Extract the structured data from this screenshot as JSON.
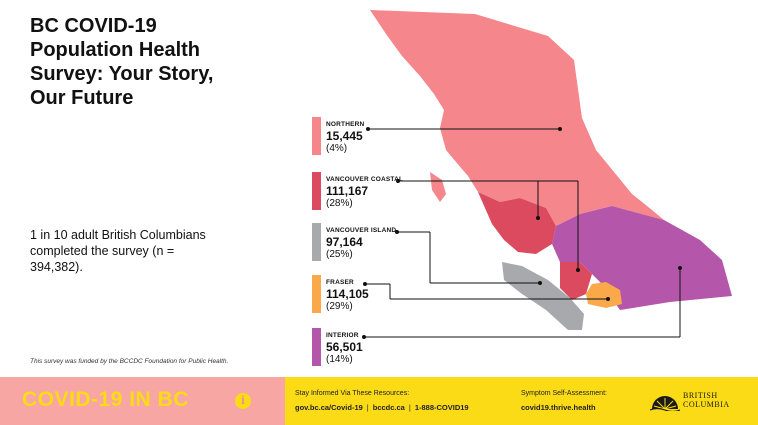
{
  "title": "BC COVID-19 Population Health Survey: Your Story, Our Future",
  "stat_text": "1 in 10 adult British Columbians completed the survey (n = 394,382).",
  "funding_note": "This survey was funded by the BCCDC Foundation for Public Health.",
  "regions": [
    {
      "name": "NORTHERN",
      "count": "15,445",
      "pct": "(4%)",
      "color": "#f4868c"
    },
    {
      "name": "VANCOUVER COASTAL",
      "count": "111,167",
      "pct": "(28%)",
      "color": "#db4a5e"
    },
    {
      "name": "VANCOUVER ISLAND",
      "count": "97,164",
      "pct": "(25%)",
      "color": "#a7a9ac"
    },
    {
      "name": "FRASER",
      "count": "114,105",
      "pct": "(29%)",
      "color": "#f9a94a"
    },
    {
      "name": "INTERIOR",
      "count": "56,501",
      "pct": "(14%)",
      "color": "#b457aa"
    }
  ],
  "footer": {
    "brand": "COVID-19 IN BC",
    "info_icon": "info-icon",
    "resources_title": "Stay Informed Via These Resources:",
    "resource_links": [
      "gov.bc.ca/Covid-19",
      "bccdc.ca",
      "1-888-COVID19"
    ],
    "self_assessment_title": "Symptom Self-Assessment:",
    "self_assessment_link": "covid19.thrive.health",
    "logo_line1": "BRITISH",
    "logo_line2": "COLUMBIA"
  }
}
